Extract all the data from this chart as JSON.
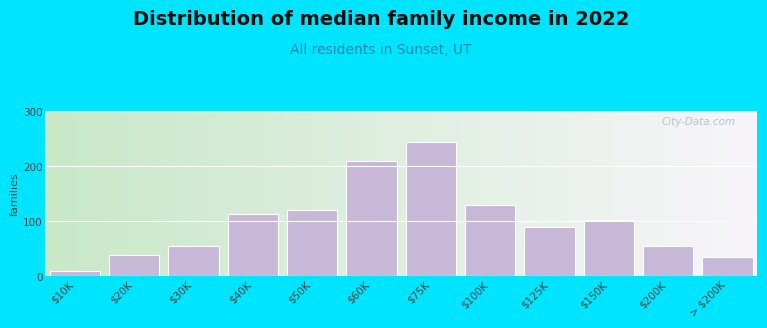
{
  "title": "Distribution of median family income in 2022",
  "subtitle": "All residents in Sunset, UT",
  "ylabel": "families",
  "categories": [
    "$10K",
    "$20K",
    "$30K",
    "$40K",
    "$50K",
    "$60K",
    "$75K",
    "$100K",
    "$125K",
    "$150K",
    "$200K",
    "> $200K"
  ],
  "values": [
    10,
    38,
    55,
    113,
    120,
    210,
    245,
    130,
    90,
    103,
    55,
    35
  ],
  "bar_color": "#c8b8d8",
  "bar_edge_color": "#ffffff",
  "ylim": [
    0,
    300
  ],
  "yticks": [
    0,
    100,
    200,
    300
  ],
  "background_outer": "#00e5ff",
  "bg_color_topleft": "#c8e8c8",
  "bg_color_right": "#f8f5fa",
  "title_fontsize": 14,
  "subtitle_fontsize": 10,
  "subtitle_color": "#2288aa",
  "watermark_text": "City-Data.com",
  "watermark_color": "#aabbcc",
  "xlabel_fontsize": 7.5,
  "ylabel_fontsize": 8
}
